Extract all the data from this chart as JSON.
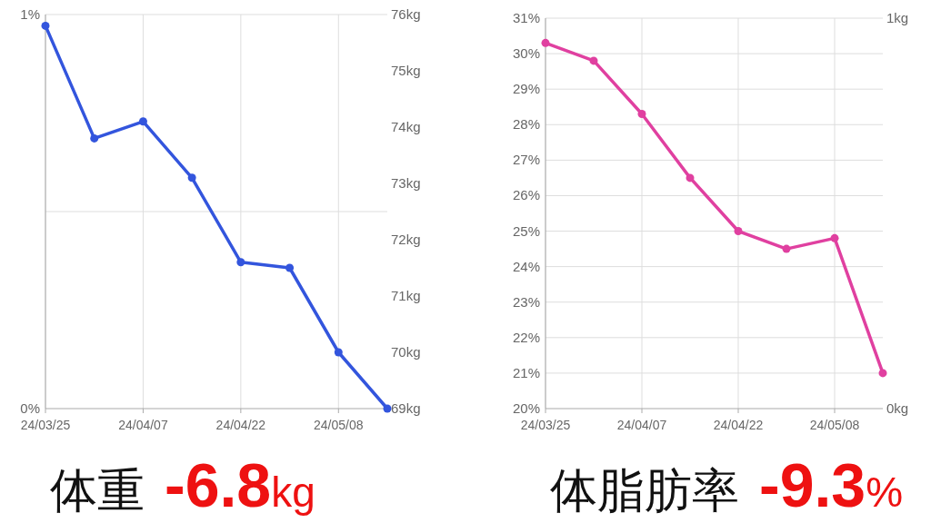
{
  "chart_data": [
    {
      "type": "line",
      "categories": [
        "24/03/25",
        null,
        "24/04/07",
        null,
        "24/04/22",
        null,
        "24/05/08",
        null
      ],
      "series": [
        {
          "color": "#3355dd",
          "axis": "y2",
          "values": [
            75.8,
            73.8,
            74.1,
            73.1,
            71.6,
            71.5,
            70.0,
            69.0
          ]
        }
      ],
      "ylim": [
        0,
        1
      ],
      "yticks": [
        {
          "value": 0,
          "label": "0%"
        },
        {
          "value": 0.5,
          "label": null
        },
        {
          "value": 1,
          "label": "1%"
        }
      ],
      "y2lim": [
        69,
        76
      ],
      "y2ticks": [
        {
          "value": 69,
          "label": "69kg"
        },
        {
          "value": 70,
          "label": "70kg"
        },
        {
          "value": 71,
          "label": "71kg"
        },
        {
          "value": 72,
          "label": "72kg"
        },
        {
          "value": 73,
          "label": "73kg"
        },
        {
          "value": 74,
          "label": "74kg"
        },
        {
          "value": 75,
          "label": "75kg"
        },
        {
          "value": 76,
          "label": "76kg"
        }
      ],
      "grid": true,
      "marker": "circle",
      "annotations": [
        "体重",
        "**-6.8**kg"
      ]
    },
    {
      "type": "line",
      "categories": [
        "24/03/25",
        null,
        "24/04/07",
        null,
        "24/04/22",
        null,
        "24/05/08",
        null
      ],
      "series": [
        {
          "color": "#e040a0",
          "values": [
            30.3,
            29.8,
            28.3,
            26.5,
            25.0,
            24.5,
            24.8,
            21.0
          ]
        }
      ],
      "ylim": [
        20,
        31
      ],
      "yticks": [
        {
          "value": 20,
          "label": "20%"
        },
        {
          "value": 21,
          "label": "21%"
        },
        {
          "value": 22,
          "label": "22%"
        },
        {
          "value": 23,
          "label": "23%"
        },
        {
          "value": 24,
          "label": "24%"
        },
        {
          "value": 25,
          "label": "25%"
        },
        {
          "value": 26,
          "label": "26%"
        },
        {
          "value": 27,
          "label": "27%"
        },
        {
          "value": 28,
          "label": "28%"
        },
        {
          "value": 29,
          "label": "29%"
        },
        {
          "value": 30,
          "label": "30%"
        },
        {
          "value": 31,
          "label": "31%"
        }
      ],
      "y2lim": [
        0,
        1
      ],
      "y2ticks": [
        {
          "value": 0,
          "label": "0kg"
        },
        {
          "value": 1,
          "label": "1kg"
        }
      ],
      "grid": true,
      "marker": "circle",
      "annotations": [
        "体脂肪率",
        "**-9.3**%"
      ]
    }
  ]
}
